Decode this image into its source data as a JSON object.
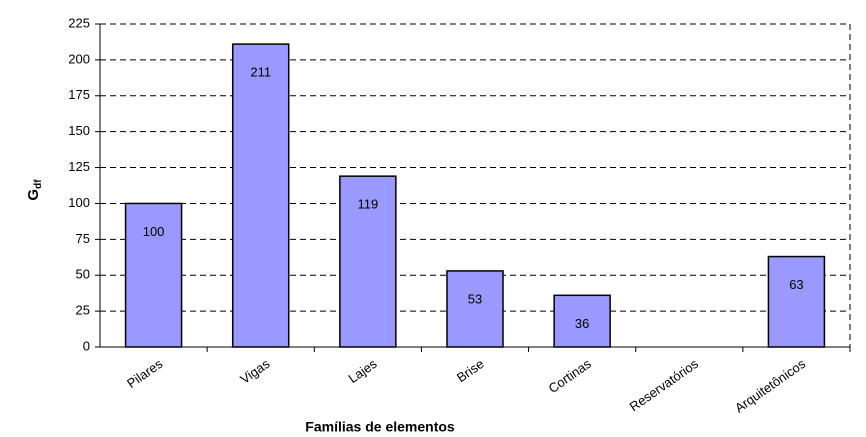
{
  "chart_data": {
    "type": "bar",
    "categories": [
      "Pilares",
      "Vigas",
      "Lajes",
      "Brise",
      "Cortinas",
      "Reservatórios",
      "Arquitetônicos"
    ],
    "values": [
      100,
      211,
      119,
      53,
      36,
      null,
      63
    ],
    "color": "#9999ff",
    "x_label": "Famílias de elementos",
    "y_label": "G",
    "y_label_sub": "df",
    "ylim": [
      0,
      225
    ],
    "yticks": [
      0,
      25,
      50,
      75,
      100,
      125,
      150,
      175,
      200,
      225
    ],
    "grid": true
  }
}
